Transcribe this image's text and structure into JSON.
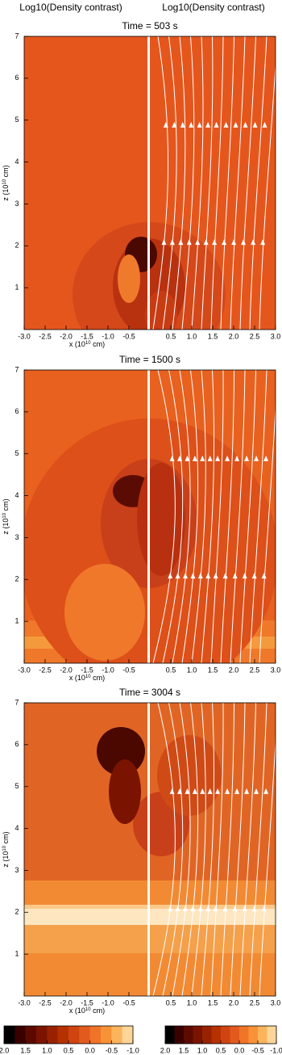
{
  "header": [
    "Log10(Density contrast)",
    "Log10(Density contrast)"
  ],
  "chart_data": [
    {
      "type": "field",
      "title": "Time =  503 s",
      "xlabel": [
        "x (10",
        "10",
        " cm)"
      ],
      "ylabel": [
        "z (10",
        "10",
        " cm)"
      ],
      "xlim": [
        -3,
        3
      ],
      "ylim": [
        0,
        7
      ],
      "xticks": [
        {
          "value": -3,
          "label": "-3.0"
        },
        -2.5,
        {
          "value": -2,
          "label": "-2.0"
        },
        -1.5,
        {
          "value": -1,
          "label": "-1.0"
        },
        -0.5,
        0.5,
        {
          "value": 1,
          "label": "1.0"
        },
        1.5,
        {
          "value": 2,
          "label": "2.0"
        },
        2.5,
        {
          "value": 3,
          "label": "3.0"
        }
      ],
      "yticks": [
        1,
        2,
        3,
        4,
        5,
        6,
        7
      ]
    },
    {
      "type": "field",
      "title": "Time = 1500 s",
      "xlabel": [
        "x (10",
        "10",
        " cm)"
      ],
      "ylabel": [
        "z (10",
        "10",
        " cm)"
      ],
      "xlim": [
        -3,
        3
      ],
      "ylim": [
        0,
        7
      ],
      "xticks": [
        {
          "value": -3,
          "label": "-3.0"
        },
        -2.5,
        {
          "value": -2,
          "label": "-2.0"
        },
        -1.5,
        {
          "value": -1,
          "label": "-1.0"
        },
        -0.5,
        0.5,
        {
          "value": 1,
          "label": "1.0"
        },
        1.5,
        {
          "value": 2,
          "label": "2.0"
        },
        2.5,
        {
          "value": 3,
          "label": "3.0"
        }
      ],
      "yticks": [
        1,
        2,
        3,
        4,
        5,
        6,
        7
      ]
    },
    {
      "type": "field",
      "title": "Time = 3004 s",
      "xlabel": [
        "x (10",
        "10",
        " cm)"
      ],
      "ylabel": [
        "z (10",
        "10",
        " cm)"
      ],
      "xlim": [
        -3,
        3
      ],
      "ylim": [
        0,
        7
      ],
      "xticks": [
        {
          "value": -3,
          "label": "-3.0"
        },
        -2.5,
        {
          "value": -2,
          "label": "-2.0"
        },
        -1.5,
        {
          "value": -1,
          "label": "-1.0"
        },
        -0.5,
        0.5,
        {
          "value": 1,
          "label": "1.0"
        },
        1.5,
        {
          "value": 2,
          "label": "2.0"
        },
        2.5,
        {
          "value": 3,
          "label": "3.0"
        }
      ],
      "yticks": [
        1,
        2,
        3,
        4,
        5,
        6,
        7
      ]
    }
  ],
  "colorbars": [
    {
      "clim": [
        2,
        -1
      ],
      "ticks": [
        {
          "value": 2,
          "label": "2.0"
        },
        1.5,
        {
          "value": 1,
          "label": "1.0"
        },
        0.5,
        {
          "value": 0,
          "label": "0.0"
        },
        -0.5,
        {
          "value": -1,
          "label": "-1.0"
        }
      ],
      "colors": [
        "#000000",
        "#3a0000",
        "#5c0a00",
        "#7a1400",
        "#982200",
        "#b53200",
        "#cf4410",
        "#e35a1e",
        "#f07428",
        "#f89236",
        "#fcb45c",
        "#fdd598"
      ]
    },
    {
      "clim": [
        2,
        -1
      ],
      "ticks": [
        {
          "value": 2,
          "label": "2.0"
        },
        1.5,
        {
          "value": 1,
          "label": "1.0"
        },
        0.5,
        {
          "value": 0,
          "label": "0.0"
        },
        -0.5,
        {
          "value": -1,
          "label": "-1.0"
        }
      ],
      "colors": [
        "#000000",
        "#3a0000",
        "#5c0a00",
        "#7a1400",
        "#982200",
        "#b53200",
        "#cf4410",
        "#e35a1e",
        "#f07428",
        "#f89236",
        "#fcb45c",
        "#fdd598"
      ]
    }
  ]
}
